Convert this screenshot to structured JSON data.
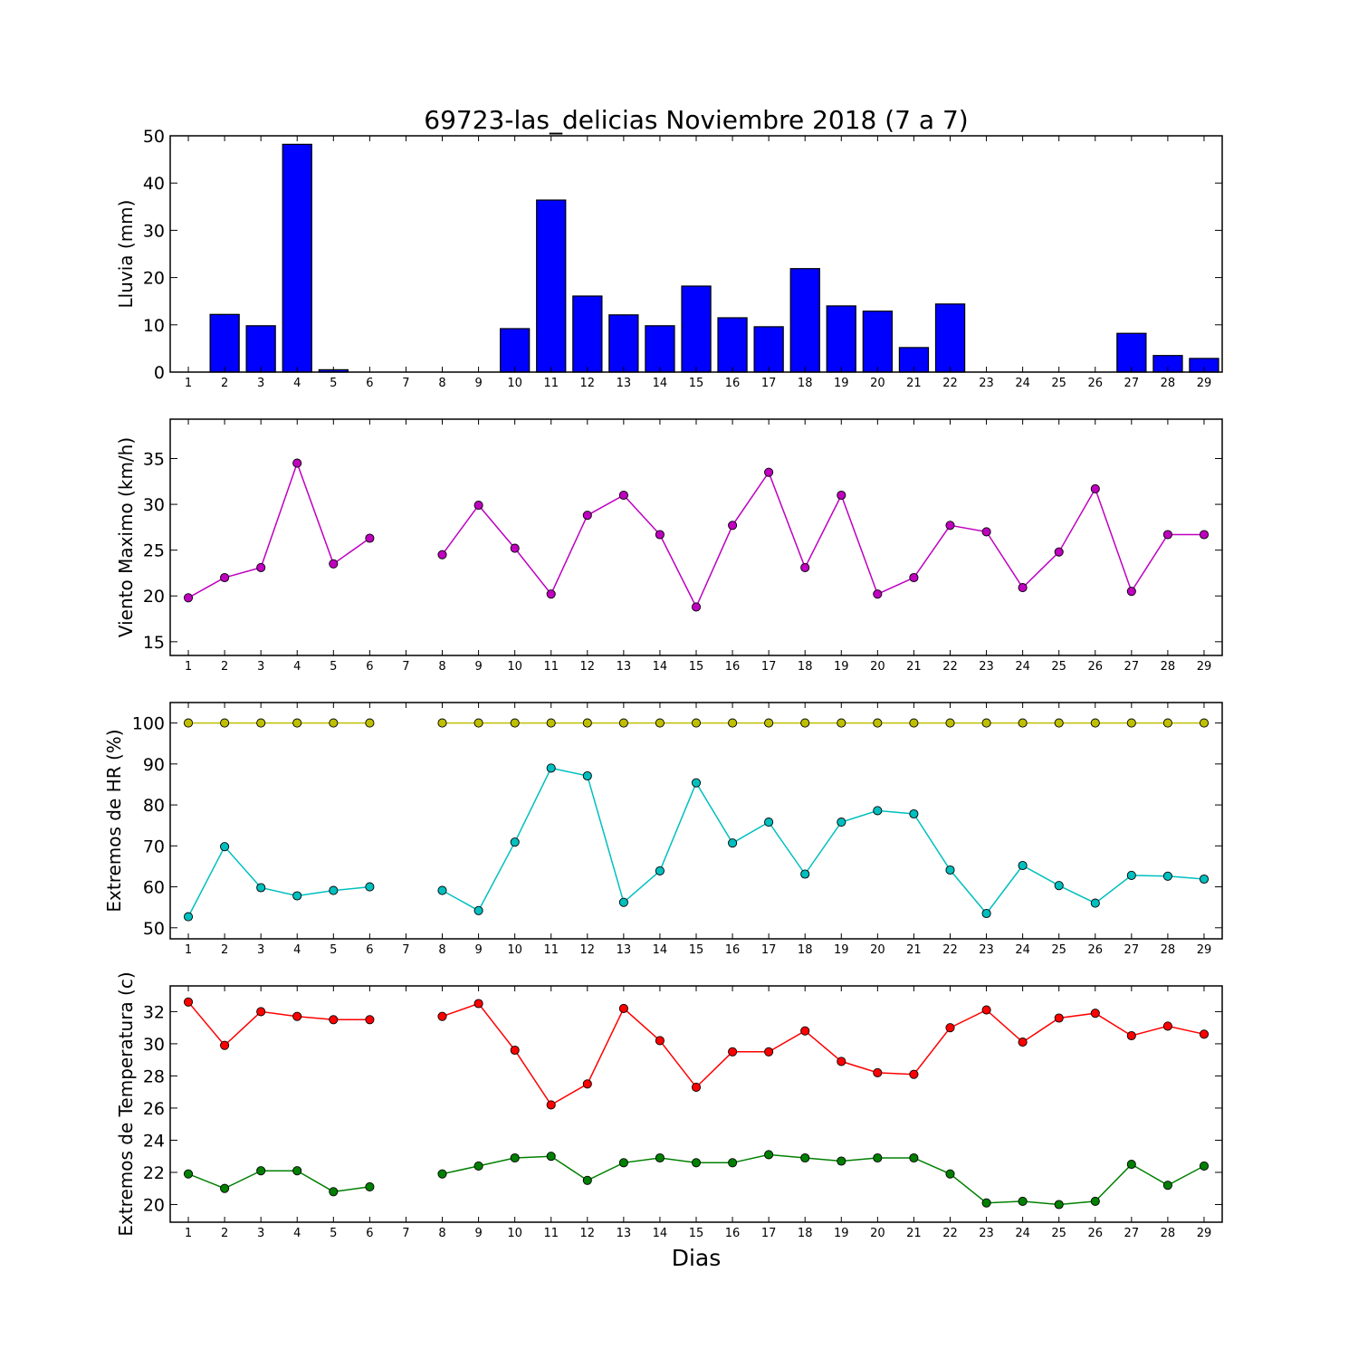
{
  "figure": {
    "title": "69723-las_delicias Noviembre 2018  (7 a 7)",
    "xlabel": "Dias",
    "days": [
      1,
      2,
      3,
      4,
      5,
      6,
      7,
      8,
      9,
      10,
      11,
      12,
      13,
      14,
      15,
      16,
      17,
      18,
      19,
      20,
      21,
      22,
      23,
      24,
      25,
      26,
      27,
      28,
      29
    ]
  },
  "chart_data": [
    {
      "type": "bar",
      "ylabel": "Lluvia (mm)",
      "ylim": [
        0,
        50
      ],
      "yticks": [
        0,
        10,
        20,
        30,
        40,
        50
      ],
      "grid": false,
      "color": "#0000ff",
      "x": [
        1,
        2,
        3,
        4,
        5,
        6,
        7,
        8,
        9,
        10,
        11,
        12,
        13,
        14,
        15,
        16,
        17,
        18,
        19,
        20,
        21,
        22,
        23,
        24,
        25,
        26,
        27,
        28,
        29
      ],
      "values": [
        0,
        12.2,
        9.8,
        48.2,
        0.5,
        0,
        0,
        0,
        0,
        9.2,
        36.4,
        16.1,
        12.1,
        9.8,
        18.2,
        11.5,
        9.6,
        21.9,
        14.0,
        12.9,
        5.2,
        14.4,
        0,
        0,
        0,
        0,
        8.2,
        3.5,
        2.9
      ]
    },
    {
      "type": "line",
      "ylabel": "Viento Maximo (km/h)",
      "ylim": [
        13.5,
        39.3
      ],
      "yticks": [
        15,
        20,
        25,
        30,
        35
      ],
      "grid": false,
      "x": [
        1,
        2,
        3,
        4,
        5,
        6,
        7,
        8,
        9,
        10,
        11,
        12,
        13,
        14,
        15,
        16,
        17,
        18,
        19,
        20,
        21,
        22,
        23,
        24,
        25,
        26,
        27,
        28,
        29
      ],
      "series": [
        {
          "color": "#bf00bf",
          "values": [
            19.8,
            22.0,
            23.1,
            34.5,
            23.5,
            26.3,
            null,
            24.5,
            29.9,
            25.2,
            20.2,
            28.8,
            31.0,
            26.7,
            18.8,
            27.7,
            33.5,
            23.1,
            31.0,
            20.2,
            22.0,
            27.7,
            27.0,
            20.9,
            24.8,
            31.7,
            20.5,
            26.7,
            26.7
          ]
        }
      ]
    },
    {
      "type": "line",
      "ylabel": "Extremos de HR (%)",
      "ylim": [
        47.3,
        105
      ],
      "yticks": [
        50,
        60,
        70,
        80,
        90,
        100
      ],
      "grid": false,
      "x": [
        1,
        2,
        3,
        4,
        5,
        6,
        7,
        8,
        9,
        10,
        11,
        12,
        13,
        14,
        15,
        16,
        17,
        18,
        19,
        20,
        21,
        22,
        23,
        24,
        25,
        26,
        27,
        28,
        29
      ],
      "series": [
        {
          "color": "#bfbf00",
          "values": [
            100,
            100,
            100,
            100,
            100,
            100,
            null,
            100,
            100,
            100,
            100,
            100,
            100,
            100,
            100,
            100,
            100,
            100,
            100,
            100,
            100,
            100,
            100,
            100,
            100,
            100,
            100,
            100,
            100
          ]
        },
        {
          "color": "#00bfbf",
          "values": [
            52.7,
            69.8,
            59.8,
            57.8,
            59.1,
            60.0,
            null,
            59.1,
            54.2,
            70.9,
            89.0,
            87.1,
            56.2,
            63.9,
            85.4,
            70.7,
            75.8,
            63.1,
            75.8,
            78.6,
            77.8,
            64.1,
            53.5,
            65.2,
            60.3,
            56.0,
            62.8,
            62.6,
            61.9
          ]
        }
      ]
    },
    {
      "type": "line",
      "ylabel": "Extremos de Temperatura (c)",
      "ylim": [
        18.9,
        33.6
      ],
      "yticks": [
        20,
        22,
        24,
        26,
        28,
        30,
        32
      ],
      "grid": false,
      "x": [
        1,
        2,
        3,
        4,
        5,
        6,
        7,
        8,
        9,
        10,
        11,
        12,
        13,
        14,
        15,
        16,
        17,
        18,
        19,
        20,
        21,
        22,
        23,
        24,
        25,
        26,
        27,
        28,
        29
      ],
      "series": [
        {
          "color": "#ff0000",
          "values": [
            32.6,
            29.9,
            32.0,
            31.7,
            31.5,
            31.5,
            null,
            31.7,
            32.5,
            29.6,
            26.2,
            27.5,
            32.2,
            30.2,
            27.3,
            29.5,
            29.5,
            30.8,
            28.9,
            28.2,
            28.1,
            31.0,
            32.1,
            30.1,
            31.6,
            31.9,
            30.5,
            31.1,
            30.6
          ]
        },
        {
          "color": "#008000",
          "values": [
            21.9,
            21.0,
            22.1,
            22.1,
            20.8,
            21.1,
            null,
            21.9,
            22.4,
            22.9,
            23.0,
            21.5,
            22.6,
            22.9,
            22.6,
            22.6,
            23.1,
            22.9,
            22.7,
            22.9,
            22.9,
            21.9,
            20.1,
            20.2,
            20.0,
            20.2,
            22.5,
            21.2,
            22.4
          ]
        }
      ]
    }
  ]
}
